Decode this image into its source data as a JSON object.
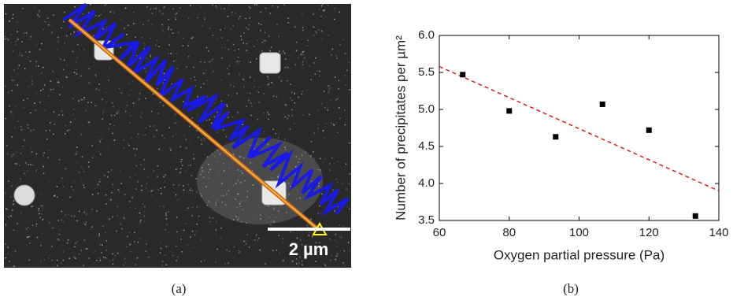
{
  "figure": {
    "panel_labels": [
      "(a)",
      "(b)"
    ],
    "scale_bar_label": "2 µm"
  },
  "chart_data": {
    "type": "scatter",
    "x_label": "Oxygen partial pressure (Pa)",
    "y_label": "Number of precipitates per µm²",
    "x": [
      66.7,
      80,
      93.3,
      106.7,
      120,
      133.3
    ],
    "values": [
      5.47,
      4.98,
      4.63,
      5.07,
      4.72,
      3.56
    ],
    "color": "#000000",
    "fit_line": {
      "x": [
        60,
        140
      ],
      "values": [
        5.58,
        3.9
      ],
      "color": "#e31a1c",
      "dashed": true
    },
    "xlim": [
      60,
      140
    ],
    "xticks": [
      60,
      80,
      100,
      120,
      140
    ],
    "ylim": [
      3.5,
      6.0
    ],
    "yticks": [
      3.5,
      {
        "value": 4,
        "label": "4.0"
      },
      4.5,
      {
        "value": 5,
        "label": "5.0"
      },
      5.5,
      {
        "value": 6,
        "label": "6.0"
      }
    ],
    "grid": false
  }
}
